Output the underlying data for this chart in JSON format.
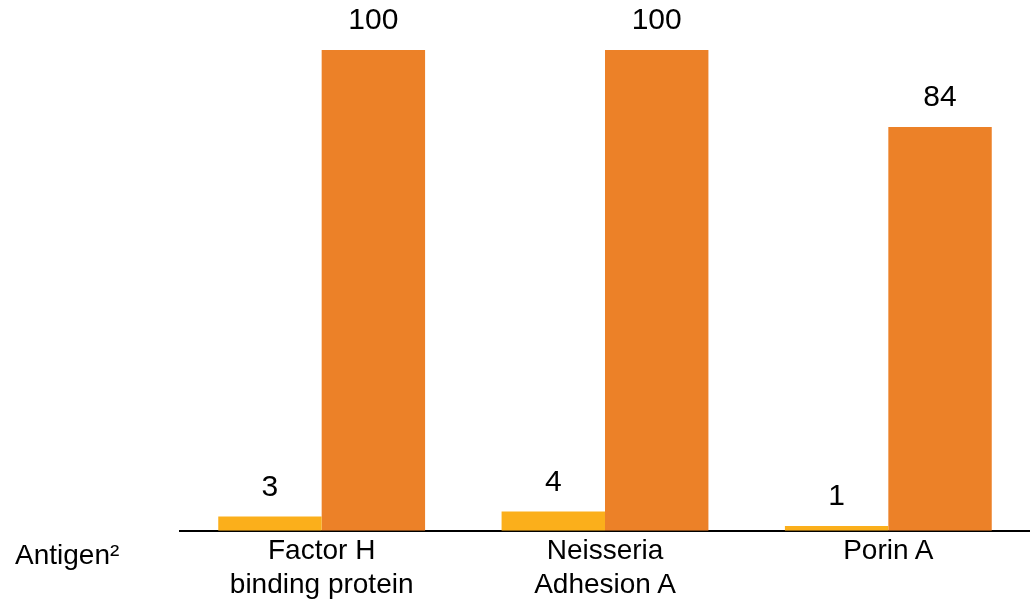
{
  "chart_data": {
    "type": "bar",
    "xlabel": "Antigen²",
    "categories": [
      "Factor H\nbinding protein",
      "Neisseria\nAdhesion A",
      "Porin A"
    ],
    "series": [
      {
        "color": "#fbaf1b",
        "values": [
          3,
          4,
          1
        ]
      },
      {
        "color": "#ec8128",
        "values": [
          100,
          100,
          84
        ]
      }
    ],
    "data_labels": true,
    "grid": false,
    "legend": false
  }
}
